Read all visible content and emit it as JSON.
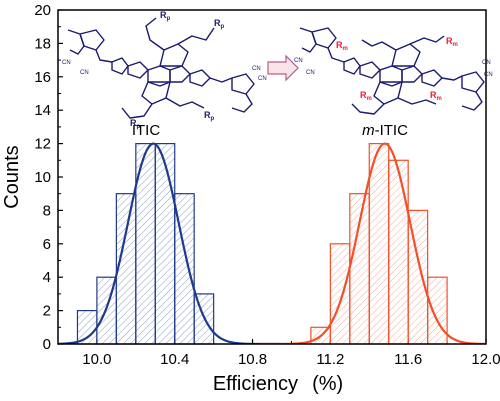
{
  "chart_data": {
    "type": "bar",
    "xlabel": "Efficiency",
    "xlabel_unit": "(%)",
    "ylabel": "Counts",
    "xlim": [
      9.8,
      12.0
    ],
    "ylim": [
      0,
      20
    ],
    "xticks": [
      "10.0",
      "10.4",
      "10.8",
      "11.2",
      "11.6",
      "12.0"
    ],
    "yticks": [
      "0",
      "2",
      "4",
      "6",
      "8",
      "10",
      "12",
      "14",
      "16",
      "18",
      "20"
    ],
    "bin_width": 0.1,
    "series": [
      {
        "name": "ITIC",
        "color": "#1f3a8a",
        "bins": [
          {
            "x": 9.95,
            "count": 2
          },
          {
            "x": 10.05,
            "count": 4
          },
          {
            "x": 10.15,
            "count": 9
          },
          {
            "x": 10.25,
            "count": 12
          },
          {
            "x": 10.35,
            "count": 12
          },
          {
            "x": 10.45,
            "count": 9
          },
          {
            "x": 10.55,
            "count": 3
          }
        ],
        "fit": {
          "mean": 10.29,
          "sigma": 0.13,
          "peak": 12
        }
      },
      {
        "name": "m-ITIC",
        "color": "#f0502a",
        "bins": [
          {
            "x": 11.15,
            "count": 1
          },
          {
            "x": 11.25,
            "count": 6
          },
          {
            "x": 11.35,
            "count": 9
          },
          {
            "x": 11.45,
            "count": 12
          },
          {
            "x": 11.55,
            "count": 11
          },
          {
            "x": 11.65,
            "count": 8
          },
          {
            "x": 11.75,
            "count": 4
          }
        ],
        "fit": {
          "mean": 11.48,
          "sigma": 0.13,
          "peak": 12
        }
      }
    ]
  },
  "molecules": {
    "left": {
      "label": "ITIC",
      "r_label": "R",
      "r_sub": "p",
      "cn": "CN"
    },
    "right": {
      "label_prefix": "m",
      "label_suffix": "-ITIC",
      "r_label": "R",
      "r_sub": "m",
      "cn": "CN"
    }
  }
}
